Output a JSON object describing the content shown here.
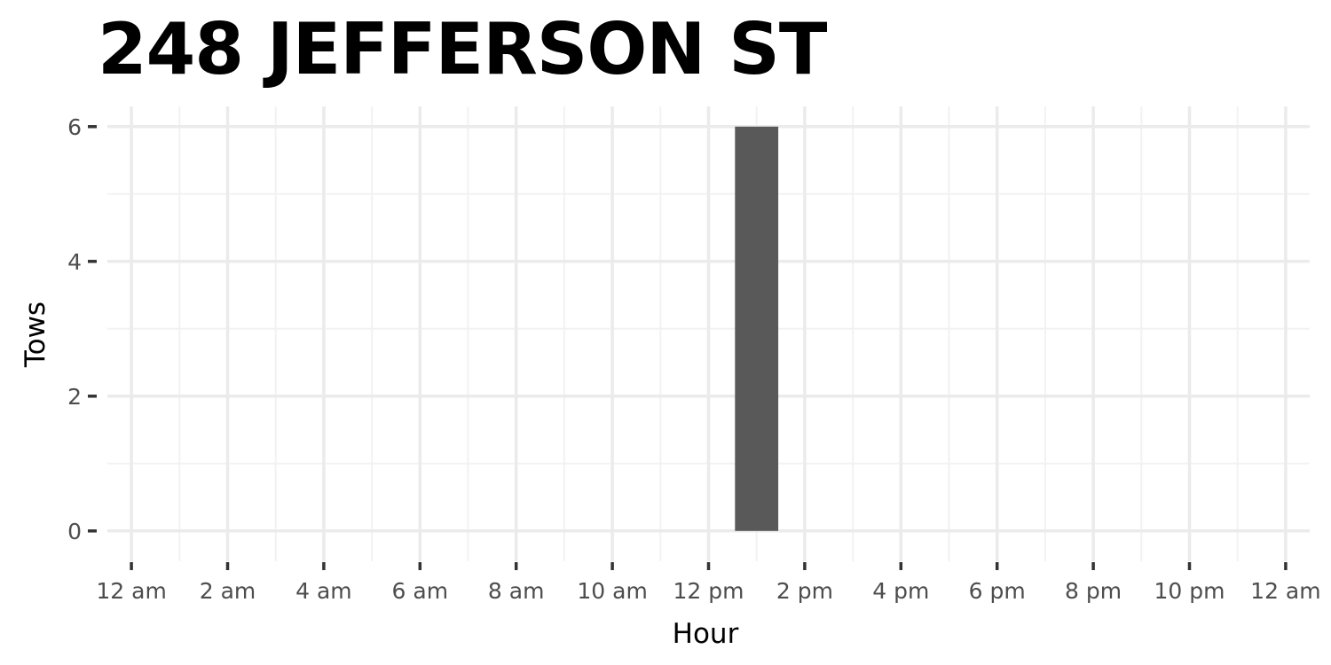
{
  "chart_data": {
    "type": "bar",
    "title": "248 JEFFERSON ST",
    "xlabel": "Hour",
    "ylabel": "Tows",
    "x_ticks": [
      "12 am",
      "2 am",
      "4 am",
      "6 am",
      "8 am",
      "10 am",
      "12 pm",
      "2 pm",
      "4 pm",
      "6 pm",
      "8 pm",
      "10 pm",
      "12 am"
    ],
    "y_ticks": [
      "0",
      "2",
      "4",
      "6"
    ],
    "xlim": [
      -0.5,
      24.5
    ],
    "ylim": [
      -0.45,
      6.3
    ],
    "bars": [
      {
        "hour": 13,
        "value": 6
      }
    ],
    "grid": true,
    "colors": {
      "bar": "#595959",
      "grid_major": "#ebebeb",
      "grid_minor": "#f2f2f2",
      "tick": "#333333",
      "tick_label": "#4d4d4d"
    }
  }
}
